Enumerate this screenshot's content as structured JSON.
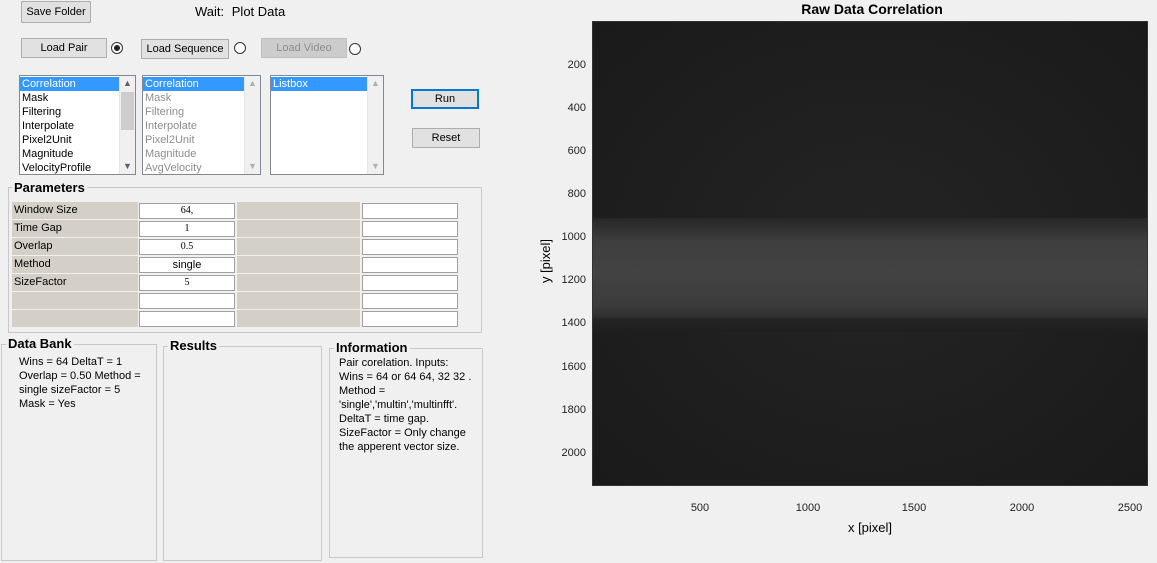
{
  "toolbar": {
    "save_folder": "Save Folder",
    "status_prefix": "Wait:",
    "status_text": "Plot Data"
  },
  "loaders": {
    "load_pair": "Load Pair",
    "load_sequence": "Load Sequence",
    "load_video": "Load Video"
  },
  "actions": {
    "run": "Run",
    "reset": "Reset"
  },
  "list1": {
    "items": [
      "Correlation",
      "Mask",
      "Filtering",
      "Interpolate",
      "Pixel2Unit",
      "Magnitude",
      "VelocityProfile"
    ]
  },
  "list2": {
    "items": [
      "Correlation",
      "Mask",
      "Filtering",
      "Interpolate",
      "Pixel2Unit",
      "Magnitude",
      "AvgVelocity"
    ]
  },
  "list3": {
    "items": [
      "Listbox"
    ]
  },
  "parameters": {
    "title": "Parameters",
    "rows": [
      {
        "label": "Window Size",
        "value": "64,"
      },
      {
        "label": "Time Gap",
        "value": "1"
      },
      {
        "label": "Overlap",
        "value": "0.5"
      },
      {
        "label": "Method",
        "value": "single"
      },
      {
        "label": "SizeFactor",
        "value": "5"
      },
      {
        "label": "",
        "value": ""
      },
      {
        "label": "",
        "value": ""
      }
    ]
  },
  "databank": {
    "title": "Data Bank",
    "lines": [
      "Wins = 64  DeltaT = 1",
      "Overlap = 0.50  Method =",
      "single  sizeFactor = 5",
      "Mask = Yes"
    ]
  },
  "results": {
    "title": "Results"
  },
  "information": {
    "title": "Information",
    "lines": [
      "Pair corelation. Inputs:",
      "Wins = 64 or 64 64, 32 32 .",
      "Method =",
      "'single','multin','multinfft'.",
      "DeltaT = time gap.",
      "SizeFactor = Only change",
      "the apperent vector size."
    ]
  },
  "plot": {
    "title": "Raw Data Correlation",
    "xlabel": "x [pixel]",
    "ylabel": "y [pixel]",
    "xticks": [
      "500",
      "1000",
      "1500",
      "2000",
      "2500"
    ],
    "yticks": [
      "200",
      "400",
      "600",
      "800",
      "1000",
      "1200",
      "1400",
      "1600",
      "1800",
      "2000"
    ]
  }
}
